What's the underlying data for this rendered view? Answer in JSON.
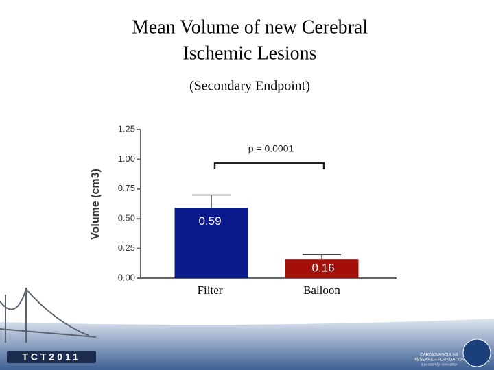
{
  "chart_data": {
    "type": "bar",
    "title": [
      "Mean Volume of new Cerebral",
      "Ischemic Lesions"
    ],
    "subtitle": "(Secondary Endpoint)",
    "y_label": "Volume (cm3)",
    "annotation": "p = 0.0001",
    "categories": [
      "Filter",
      "Balloon"
    ],
    "series": [
      {
        "values": [
          0.59,
          0.16
        ],
        "errors": [
          0.11,
          0.04
        ],
        "colors": [
          "#0a1a8c",
          "#a50f0a"
        ]
      }
    ],
    "ylim": [
      0,
      1.25
    ],
    "yticks": [
      {
        "value": 0,
        "label": "0.00"
      },
      {
        "value": 0.25,
        "label": "0.25"
      },
      {
        "value": 0.5,
        "label": "0.50"
      },
      {
        "value": 0.75,
        "label": "0.75"
      },
      {
        "value": 1,
        "label": "1.00"
      },
      {
        "value": 1.25,
        "label": "1.25"
      }
    ]
  },
  "footer": {
    "logo": "TCT2011",
    "organization": [
      "CARDIOVASCULAR",
      "RESEARCH FOUNDATION"
    ],
    "tagline": "a passion for innovation"
  }
}
